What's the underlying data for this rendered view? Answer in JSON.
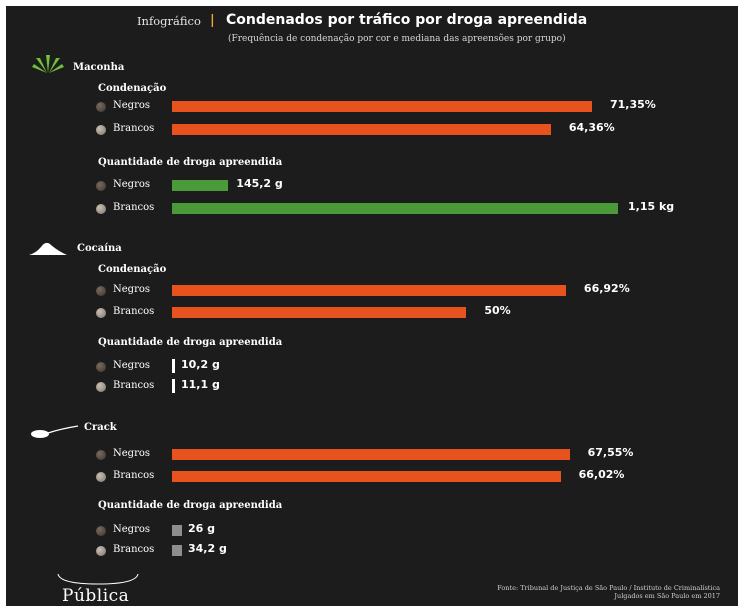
{
  "header": {
    "kicker": "Infográfico",
    "title": "Condenados por tráfico por droga apreendida",
    "subtitle": "(Frequência de condenação por cor e mediana das apreensões por grupo)",
    "accent_color": "#f2a530"
  },
  "colors": {
    "condenacao": "#e8521f",
    "quantidade_maconha": "#4a9a3a",
    "quantidade_cocaina": "#ffffff",
    "quantidade_crack": "#8e8e8e",
    "background": "#1c1c1c"
  },
  "chart_data": {
    "type": "bar",
    "title": "Condenados por tráfico por droga apreendida",
    "subtitle": "(Frequência de condenação por cor e mediana das apreensões por grupo)",
    "groups": [
      {
        "drug": "Maconha",
        "icon": "cannabis-leaf-icon",
        "condenacao": {
          "title": "Condenação",
          "categories": [
            "Negros",
            "Brancos"
          ],
          "values": [
            71.35,
            64.36
          ],
          "labels": [
            "71,35%",
            "64,36%"
          ],
          "unit": "%"
        },
        "quantidade": {
          "title": "Quantidade de droga apreendida",
          "categories": [
            "Negros",
            "Brancos"
          ],
          "values_g": [
            145.2,
            1150
          ],
          "labels": [
            "145,2 g",
            "1,15 kg"
          ]
        }
      },
      {
        "drug": "Cocaína",
        "icon": "powder-pile-icon",
        "condenacao": {
          "title": "Condenação",
          "categories": [
            "Negros",
            "Brancos"
          ],
          "values": [
            66.92,
            50
          ],
          "labels": [
            "66,92%",
            "50%"
          ],
          "unit": "%"
        },
        "quantidade": {
          "title": "Quantidade de droga apreendida",
          "categories": [
            "Negros",
            "Brancos"
          ],
          "values_g": [
            10.2,
            11.1
          ],
          "labels": [
            "10,2 g",
            "11,1 g"
          ]
        }
      },
      {
        "drug": "Crack",
        "icon": "spoon-icon",
        "condenacao": {
          "title": "",
          "categories": [
            "Negros",
            "Brancos"
          ],
          "values": [
            67.55,
            66.02
          ],
          "labels": [
            "67,55%",
            "66,02%"
          ],
          "unit": "%"
        },
        "quantidade": {
          "title": "Quantidade de droga apreendida",
          "categories": [
            "Negros",
            "Brancos"
          ],
          "values_g": [
            26,
            34.2
          ],
          "labels": [
            "26 g",
            "34,2 g"
          ]
        }
      }
    ]
  },
  "footer": {
    "source_line1": "Fonte: Tribunal de Justiça de São Paulo / Instituto de Criminalística",
    "source_line2": "Julgados em São Paulo em 2017",
    "logo": "Pública"
  }
}
